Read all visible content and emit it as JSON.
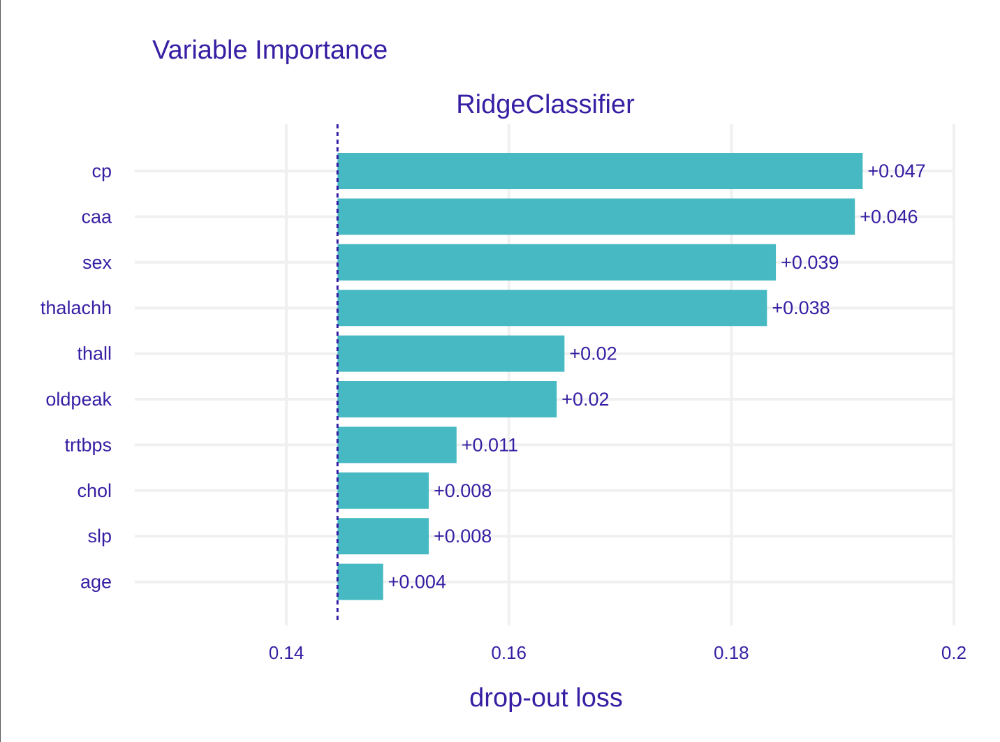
{
  "colors": {
    "bar": "#46b9c2",
    "text": "#371ea3",
    "grid": "#f0f0f0",
    "baseline": "#371ea3"
  },
  "chart_data": {
    "type": "bar",
    "orientation": "horizontal",
    "title": "Variable Importance",
    "subtitle": "RidgeClassifier",
    "xlabel": "drop-out loss",
    "xlim": [
      0.126,
      0.2
    ],
    "xticks": [
      0.14,
      0.16,
      0.18,
      0.2
    ],
    "xtick_labels": [
      "0.14",
      "0.16",
      "0.18",
      "0.2"
    ],
    "baseline": 0.1446,
    "grid": true,
    "categories": [
      "cp",
      "caa",
      "sex",
      "thalachh",
      "thall",
      "oldpeak",
      "trtbps",
      "chol",
      "slp",
      "age"
    ],
    "values": [
      0.1918,
      0.1911,
      0.184,
      0.1832,
      0.165,
      0.1643,
      0.1553,
      0.1528,
      0.1528,
      0.1487
    ],
    "labels": [
      "+0.047",
      "+0.046",
      "+0.039",
      "+0.038",
      "+0.02",
      "+0.02",
      "+0.011",
      "+0.008",
      "+0.008",
      "+0.004"
    ]
  }
}
